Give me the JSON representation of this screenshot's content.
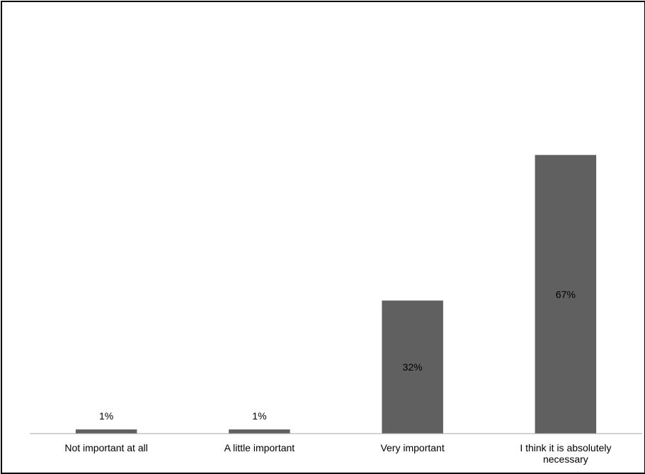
{
  "chart_data": {
    "type": "bar",
    "categories": [
      "Not important at all",
      "A little important",
      "Very important",
      "I think it is absolutely necessary"
    ],
    "category_label_lines": [
      [
        "Not important at all"
      ],
      [
        "A little important"
      ],
      [
        "Very important"
      ],
      [
        "I think it is absolutely",
        "necessary"
      ]
    ],
    "values": [
      1,
      1,
      32,
      67
    ],
    "data_labels": [
      "1%",
      "1%",
      "32%",
      "67%"
    ],
    "unit": "%",
    "title": "",
    "xlabel": "",
    "ylabel": "",
    "ylim": [
      0,
      100
    ],
    "grid": false,
    "legend": "none",
    "colors": {
      "bar": "#606060",
      "axis": "#a6a6a6",
      "frame": "#000000"
    }
  }
}
